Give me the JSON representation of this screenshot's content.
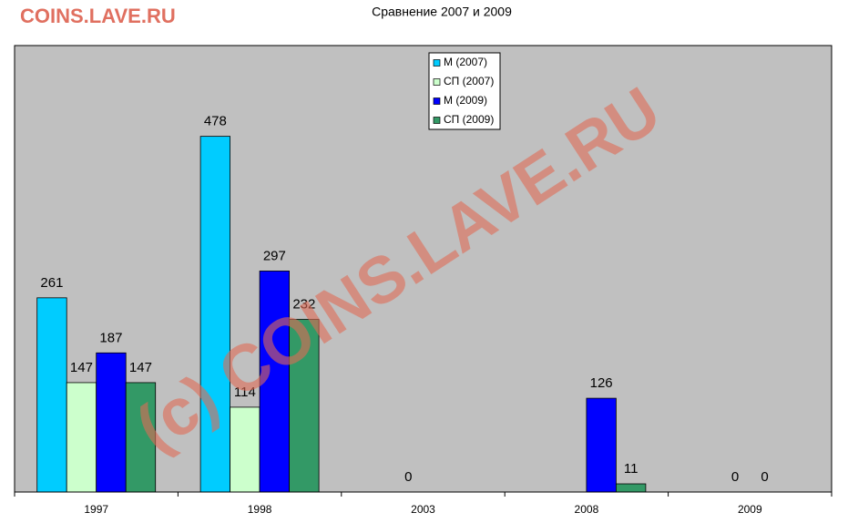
{
  "site_label": "COINS.LAVE.RU",
  "watermark": "(c) COINS.LAVE.RU",
  "chart_data": {
    "type": "bar",
    "title": "Сравнение 2007 и 2009",
    "categories": [
      "1997",
      "1998",
      "2003",
      "2008",
      "2009"
    ],
    "series": [
      {
        "name": "М (2007)",
        "color": "#00ccff",
        "values": [
          261,
          478,
          null,
          null,
          null
        ]
      },
      {
        "name": "СП (2007)",
        "color": "#ccffcc",
        "values": [
          147,
          114,
          0,
          null,
          0
        ]
      },
      {
        "name": "М (2009)",
        "color": "#0000ff",
        "values": [
          187,
          297,
          null,
          126,
          0
        ]
      },
      {
        "name": "СП (2009)",
        "color": "#339966",
        "values": [
          147,
          232,
          null,
          11,
          null
        ]
      }
    ],
    "ylim": [
      0,
      600
    ]
  }
}
